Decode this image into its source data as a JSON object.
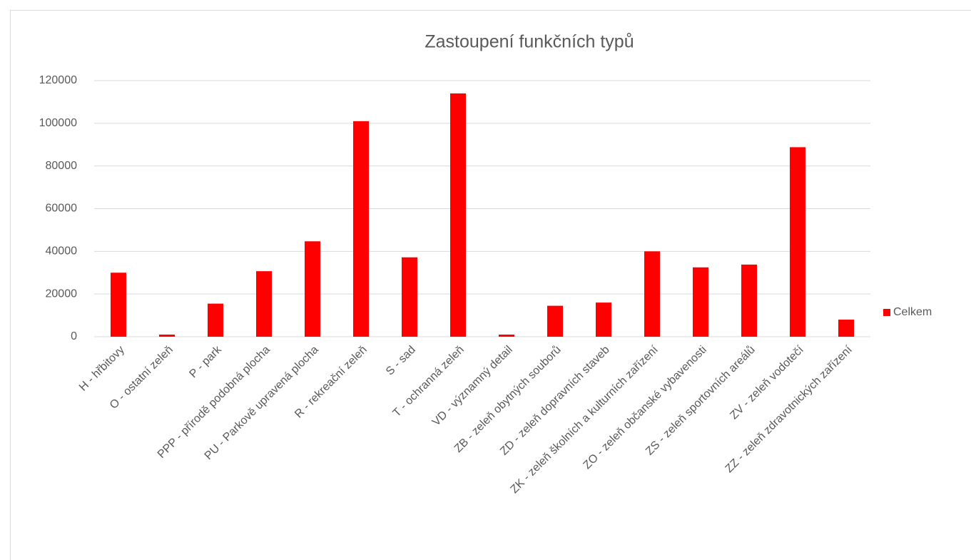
{
  "chart_data": {
    "type": "bar",
    "title": "Zastoupení funkčních typů",
    "categories": [
      "H - hřbitovy",
      "O - ostatní zeleň",
      "P  - park",
      "PPP - přírodě podobná plocha",
      "PU - Parkově upravená plocha",
      "R - rekreační zeleň",
      "S - sad",
      "T - ochranná zeleň",
      "VD - významný detail",
      "ZB - zeleň obytných souborů",
      "ZD - zeleň dopravních staveb",
      "ZK - zeleň školních a kulturních zařízení",
      "ZO - zeleň občanské vybavenosti",
      "ZS - zeleň sportovních areálů",
      "ZV - zeleň vodotečí",
      "ZZ - zeleň zdravotnických zařízení"
    ],
    "series": [
      {
        "name": "Celkem",
        "color": "#ff0000",
        "values": [
          30000,
          1000,
          15500,
          30700,
          44700,
          101000,
          37200,
          114000,
          1000,
          14500,
          16000,
          40000,
          32500,
          33800,
          88800,
          8000
        ]
      }
    ],
    "ylim": [
      0,
      120000
    ],
    "yticks": [
      0,
      20000,
      40000,
      60000,
      80000,
      100000,
      120000
    ],
    "grid": true,
    "legend": "right"
  }
}
